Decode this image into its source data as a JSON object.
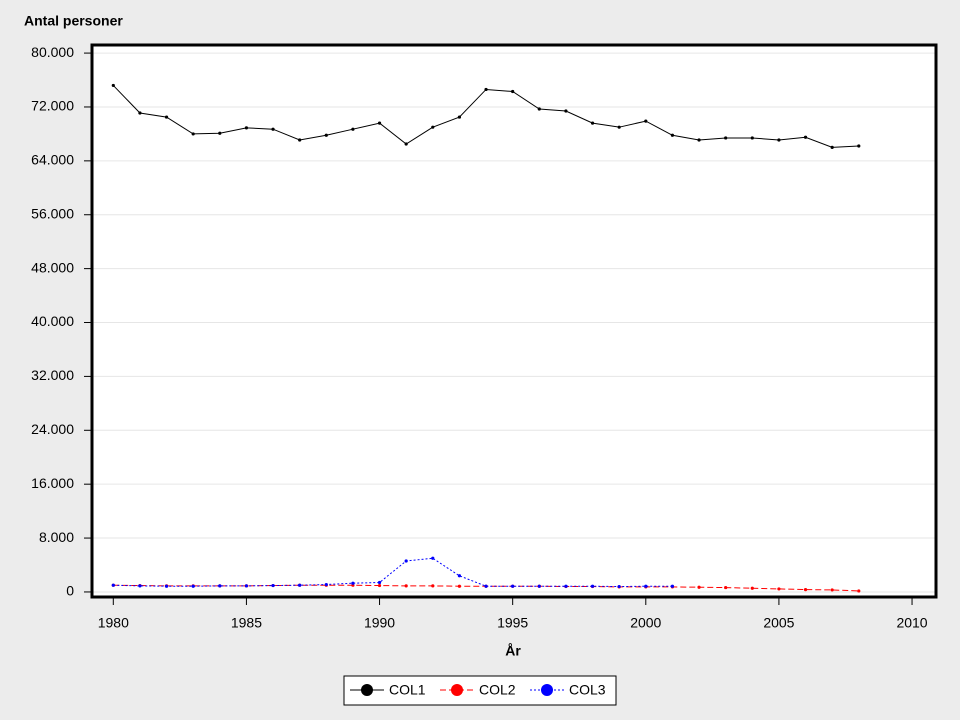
{
  "chart_data": {
    "type": "line",
    "y_label": "Antal personer",
    "x_label": "År",
    "x": [
      1980,
      1981,
      1982,
      1983,
      1984,
      1985,
      1986,
      1987,
      1988,
      1989,
      1990,
      1991,
      1992,
      1993,
      1994,
      1995,
      1996,
      1997,
      1998,
      1999,
      2000,
      2001,
      2002,
      2003,
      2004,
      2005,
      2006,
      2007,
      2008
    ],
    "series": [
      {
        "name": "COL1",
        "color": "#000000",
        "line_style": "solid",
        "values": [
          75200,
          71100,
          70500,
          68000,
          68100,
          68900,
          68700,
          67100,
          67800,
          68700,
          69600,
          66500,
          69000,
          70500,
          74600,
          74300,
          71700,
          71400,
          69600,
          69000,
          69900,
          67800,
          67100,
          67400,
          67400,
          67100,
          67500,
          66000,
          66200
        ]
      },
      {
        "name": "COL2",
        "color": "#ff0000",
        "line_style": "dashed",
        "values": [
          1000,
          950,
          900,
          900,
          900,
          900,
          950,
          1000,
          1000,
          1000,
          950,
          900,
          900,
          850,
          850,
          850,
          850,
          800,
          800,
          750,
          750,
          750,
          700,
          650,
          550,
          450,
          350,
          300,
          150
        ]
      },
      {
        "name": "COL3",
        "color": "#0000ff",
        "line_style": "dotted",
        "values": [
          1000,
          900,
          850,
          850,
          900,
          900,
          950,
          1000,
          1100,
          1300,
          1400,
          4600,
          5000,
          2400,
          850,
          850,
          850,
          850,
          850,
          800,
          850,
          850,
          null,
          null,
          null,
          null,
          null,
          null,
          null
        ]
      }
    ],
    "xlim": [
      1979.2,
      2010.9
    ],
    "xticks": [
      1980,
      1985,
      1990,
      1995,
      2000,
      2005,
      2010
    ],
    "ylim": [
      -750,
      81200
    ],
    "yticks": [
      {
        "value": 0,
        "label": "0"
      },
      {
        "value": 8000,
        "label": "8.000"
      },
      {
        "value": 16000,
        "label": "16.000"
      },
      {
        "value": 24000,
        "label": "24.000"
      },
      {
        "value": 32000,
        "label": "32.000"
      },
      {
        "value": 40000,
        "label": "40.000"
      },
      {
        "value": 48000,
        "label": "48.000"
      },
      {
        "value": 56000,
        "label": "56.000"
      },
      {
        "value": 64000,
        "label": "64.000"
      },
      {
        "value": 72000,
        "label": "72.000"
      },
      {
        "value": 80000,
        "label": "80.000"
      }
    ],
    "grid": true,
    "legend": "bottom"
  }
}
